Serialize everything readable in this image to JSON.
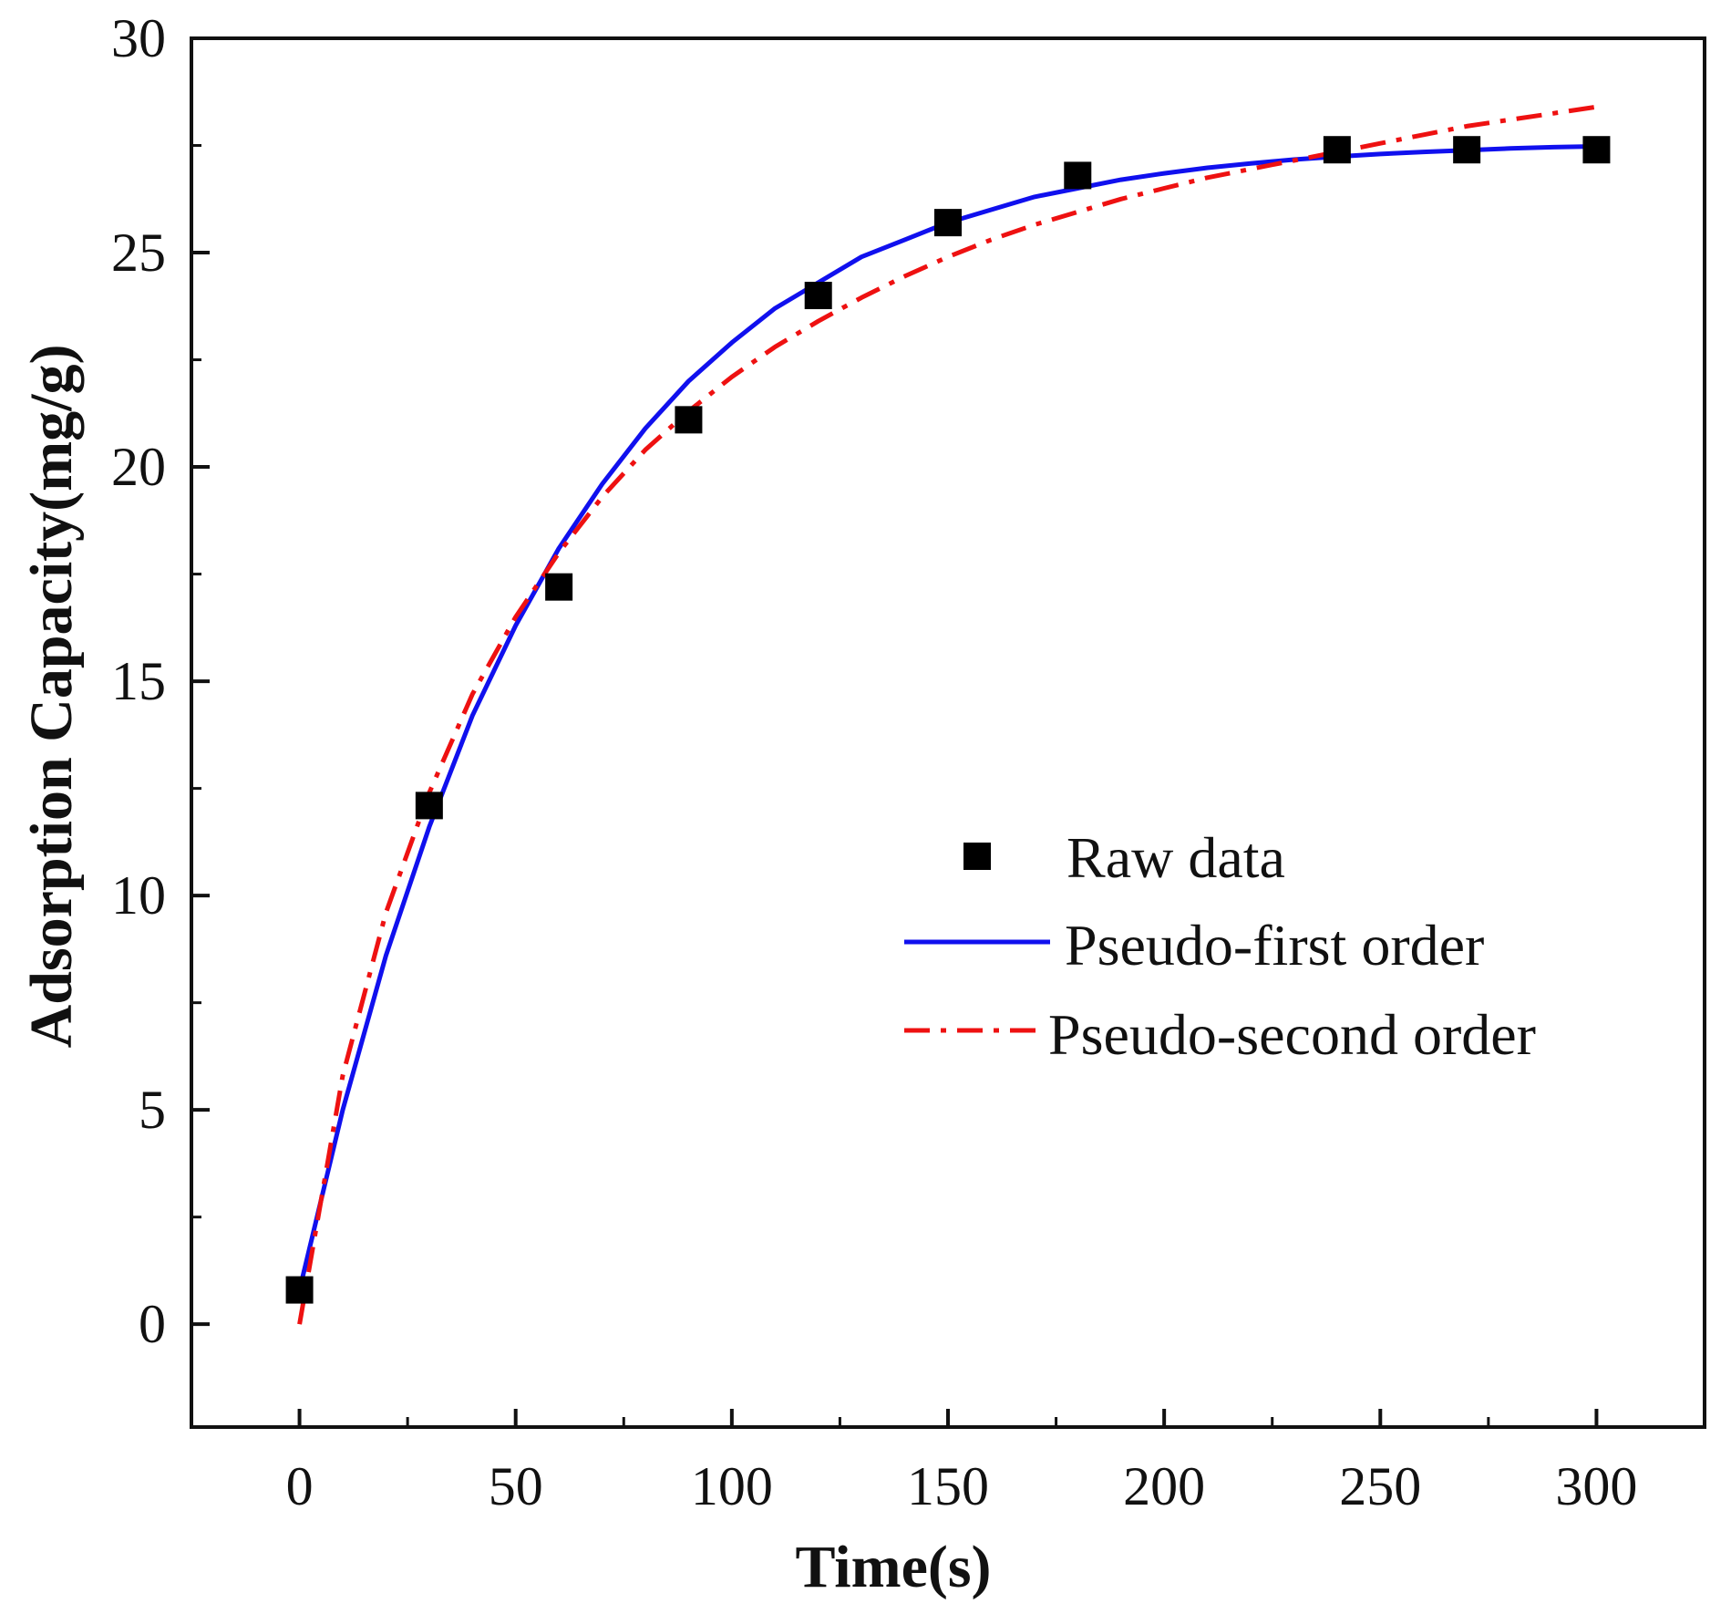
{
  "chart_data": {
    "type": "scatter",
    "title": "",
    "xlabel": "Time(s)",
    "ylabel": "Adsorption Capacity(mg/g)",
    "xlim": [
      -25,
      325
    ],
    "ylim": [
      -2.4,
      30
    ],
    "xticks": [
      0,
      50,
      100,
      150,
      200,
      250,
      300
    ],
    "xtick_labels": [
      "0",
      "50",
      "100",
      "150",
      "200",
      "250",
      "300"
    ],
    "yticks": [
      0,
      5,
      10,
      15,
      20,
      25,
      30
    ],
    "ytick_labels": [
      "0",
      "5",
      "10",
      "15",
      "20",
      "25",
      "30"
    ],
    "grid": false,
    "legend_position": "center-right",
    "series": [
      {
        "name": "Raw data",
        "kind": "scatter",
        "marker": "square",
        "color": "#000000",
        "x": [
          0,
          30,
          60,
          90,
          120,
          150,
          180,
          240,
          270,
          300
        ],
        "y": [
          0.8,
          12.1,
          17.2,
          21.1,
          24.0,
          25.7,
          26.8,
          27.4,
          27.4,
          27.4
        ]
      },
      {
        "name": "Pseudo-first order",
        "kind": "line",
        "style": "solid",
        "color": "#1010ee",
        "x": [
          0,
          10,
          20,
          30,
          40,
          50,
          60,
          70,
          80,
          90,
          100,
          110,
          120,
          130,
          140,
          150,
          160,
          170,
          180,
          190,
          200,
          210,
          220,
          230,
          240,
          250,
          260,
          270,
          280,
          290,
          300
        ],
        "y": [
          0.8,
          5.0,
          8.6,
          11.6,
          14.2,
          16.3,
          18.1,
          19.6,
          20.9,
          22.0,
          22.9,
          23.7,
          24.3,
          24.9,
          25.3,
          25.7,
          26.0,
          26.3,
          26.5,
          26.7,
          26.85,
          26.98,
          27.08,
          27.17,
          27.24,
          27.3,
          27.35,
          27.39,
          27.43,
          27.46,
          27.48
        ]
      },
      {
        "name": "Pseudo-second order",
        "kind": "line",
        "style": "dash-dot",
        "color": "#ee1111",
        "x": [
          0,
          10,
          20,
          30,
          40,
          50,
          60,
          70,
          80,
          90,
          100,
          110,
          120,
          130,
          140,
          150,
          160,
          170,
          180,
          190,
          200,
          210,
          220,
          230,
          240,
          250,
          260,
          270,
          280,
          290,
          300
        ],
        "y": [
          0.0,
          5.8,
          9.6,
          12.4,
          14.7,
          16.5,
          18.0,
          19.3,
          20.4,
          21.3,
          22.1,
          22.8,
          23.4,
          23.95,
          24.45,
          24.9,
          25.3,
          25.65,
          25.95,
          26.25,
          26.5,
          26.75,
          26.95,
          27.15,
          27.35,
          27.55,
          27.75,
          27.95,
          28.1,
          28.25,
          28.4
        ]
      }
    ]
  }
}
